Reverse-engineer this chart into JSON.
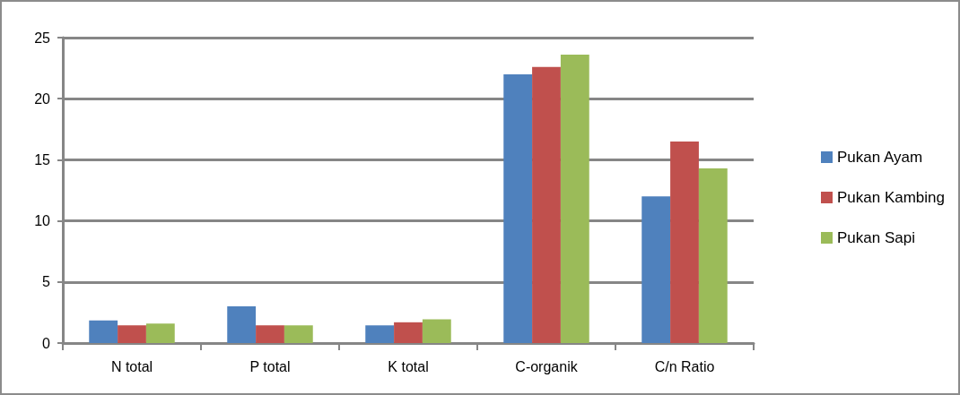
{
  "chart_data": {
    "type": "bar",
    "categories": [
      "N total",
      "P total",
      "K total",
      "C-organik",
      "C/n Ratio"
    ],
    "series": [
      {
        "name": "Pukan Ayam",
        "color": "#4f81bd",
        "values": [
          1.85,
          3.0,
          1.45,
          22.0,
          12.0
        ]
      },
      {
        "name": "Pukan Kambing",
        "color": "#c0504d",
        "values": [
          1.45,
          1.45,
          1.7,
          22.6,
          16.5
        ]
      },
      {
        "name": "Pukan Sapi",
        "color": "#9bbb59",
        "values": [
          1.6,
          1.45,
          1.95,
          23.6,
          14.3
        ]
      }
    ],
    "ylim": [
      0,
      25
    ],
    "yticks": [
      0,
      5,
      10,
      15,
      20,
      25
    ],
    "grid": "y",
    "legend": "right"
  }
}
